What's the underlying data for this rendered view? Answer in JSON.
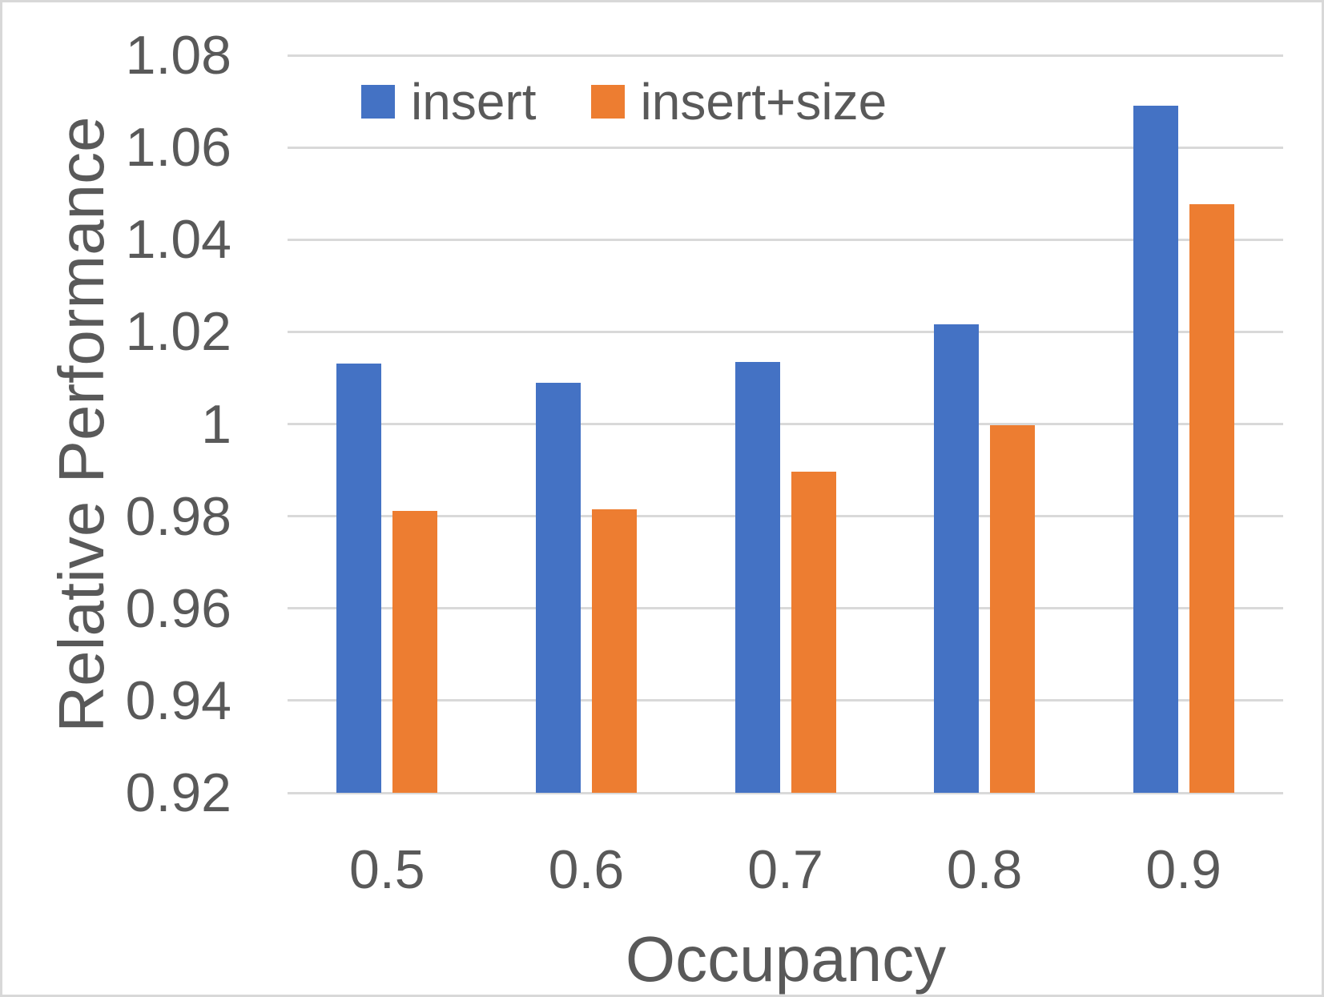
{
  "chart_data": {
    "type": "bar",
    "title": "",
    "xlabel": "Occupancy",
    "ylabel": "Relative Performance",
    "categories": [
      "0.5",
      "0.6",
      "0.7",
      "0.8",
      "0.9"
    ],
    "series": [
      {
        "name": "insert",
        "color": "#4472C4",
        "values": [
          1.0131,
          1.009,
          1.0135,
          1.0217,
          1.069
        ]
      },
      {
        "name": "insert+size",
        "color": "#ED7D31",
        "values": [
          0.9811,
          0.9815,
          0.9896,
          0.9997,
          1.0477
        ]
      }
    ],
    "ylim": [
      0.92,
      1.08
    ],
    "ytick_step": 0.02,
    "ytick_labels": [
      "1.08",
      "1.06",
      "1.04",
      "1.02",
      "1",
      "0.98",
      "0.96",
      "0.94",
      "0.92"
    ],
    "grid": true,
    "legend_position": "top"
  },
  "colors": {
    "gridline": "#D9D9D9",
    "axis_text": "#595959",
    "background": "#FFFFFF",
    "frame": "#D8D8D8"
  }
}
